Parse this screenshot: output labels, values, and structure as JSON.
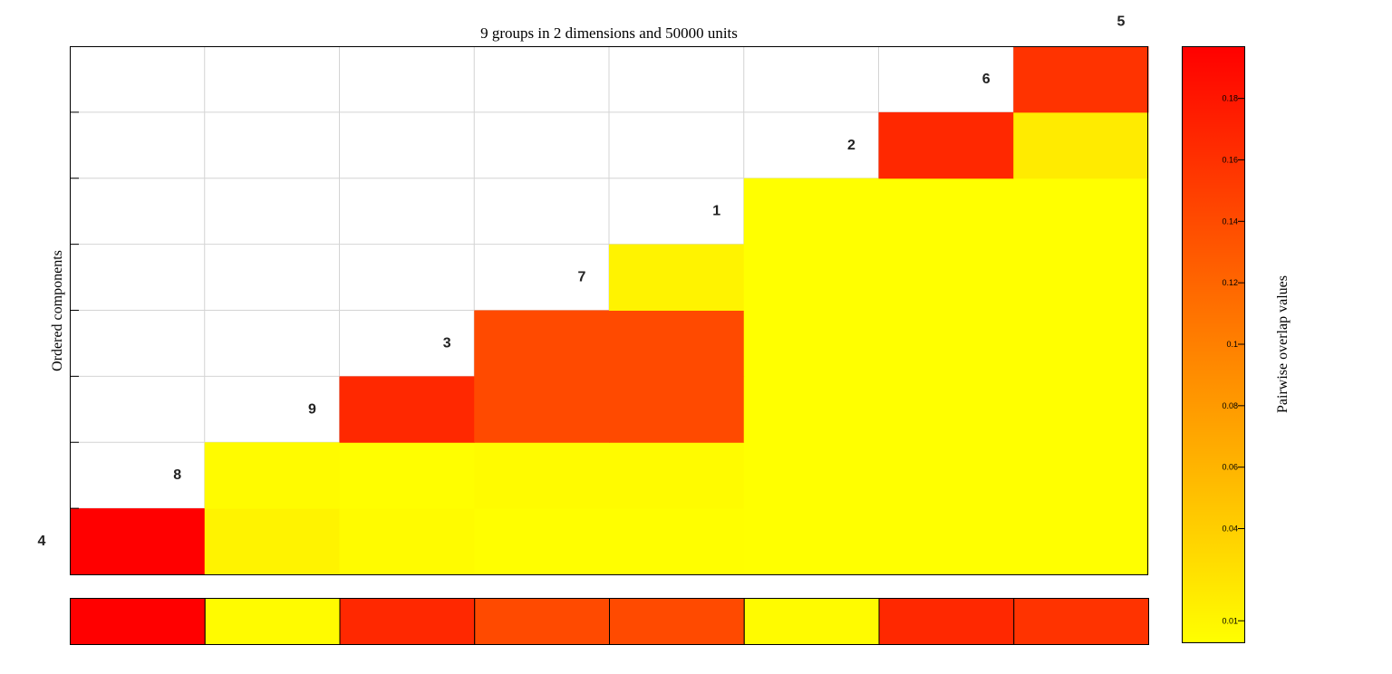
{
  "chart_data": {
    "type": "heatmap",
    "title": "9 groups in 2 dimensions and 50000 units",
    "ylabel": "Ordered components",
    "colorbar_label": "Pairwise overlap values",
    "colorbar_ticks": [
      0.01,
      0.04,
      0.06,
      0.08,
      0.1,
      0.12,
      0.14,
      0.16,
      0.18
    ],
    "colorbar_range": [
      0.003,
      0.197
    ],
    "group_order": [
      "4",
      "8",
      "9",
      "3",
      "7",
      "1",
      "2",
      "6",
      "5"
    ],
    "cells": [
      {
        "row": 0,
        "col": 0,
        "value": 0.197
      },
      {
        "row": 0,
        "col": 1,
        "value": 0.012
      },
      {
        "row": 0,
        "col": 2,
        "value": 0.006
      },
      {
        "row": 0,
        "col": 3,
        "value": 0.004
      },
      {
        "row": 0,
        "col": 4,
        "value": 0.004
      },
      {
        "row": 0,
        "col": 5,
        "value": 0.003
      },
      {
        "row": 0,
        "col": 6,
        "value": 0.003
      },
      {
        "row": 0,
        "col": 7,
        "value": 0.003
      },
      {
        "row": 1,
        "col": 1,
        "value": 0.006
      },
      {
        "row": 1,
        "col": 2,
        "value": 0.004
      },
      {
        "row": 1,
        "col": 3,
        "value": 0.006
      },
      {
        "row": 1,
        "col": 4,
        "value": 0.006
      },
      {
        "row": 1,
        "col": 5,
        "value": 0.003
      },
      {
        "row": 1,
        "col": 6,
        "value": 0.003
      },
      {
        "row": 1,
        "col": 7,
        "value": 0.003
      },
      {
        "row": 2,
        "col": 2,
        "value": 0.167
      },
      {
        "row": 2,
        "col": 3,
        "value": 0.141
      },
      {
        "row": 2,
        "col": 4,
        "value": 0.141
      },
      {
        "row": 2,
        "col": 5,
        "value": 0.003
      },
      {
        "row": 2,
        "col": 6,
        "value": 0.003
      },
      {
        "row": 2,
        "col": 7,
        "value": 0.003
      },
      {
        "row": 3,
        "col": 3,
        "value": 0.141
      },
      {
        "row": 3,
        "col": 4,
        "value": 0.141
      },
      {
        "row": 3,
        "col": 5,
        "value": 0.003
      },
      {
        "row": 3,
        "col": 6,
        "value": 0.003
      },
      {
        "row": 3,
        "col": 7,
        "value": 0.003
      },
      {
        "row": 4,
        "col": 4,
        "value": 0.012
      },
      {
        "row": 4,
        "col": 5,
        "value": 0.003
      },
      {
        "row": 4,
        "col": 6,
        "value": 0.003
      },
      {
        "row": 4,
        "col": 7,
        "value": 0.003
      },
      {
        "row": 5,
        "col": 5,
        "value": 0.003
      },
      {
        "row": 5,
        "col": 6,
        "value": 0.003
      },
      {
        "row": 5,
        "col": 7,
        "value": 0.003
      },
      {
        "row": 6,
        "col": 6,
        "value": 0.167
      },
      {
        "row": 6,
        "col": 7,
        "value": 0.018
      },
      {
        "row": 7,
        "col": 7,
        "value": 0.158
      }
    ],
    "bottom_strip_values": [
      0.197,
      0.006,
      0.167,
      0.141,
      0.141,
      0.006,
      0.167,
      0.158
    ],
    "grid": true
  },
  "colors": {
    "scale_low": "#ffff00",
    "scale_mid": "#ff8000",
    "scale_high": "#ff0000",
    "grid": "#d4d4d4",
    "axis": "#000000"
  }
}
